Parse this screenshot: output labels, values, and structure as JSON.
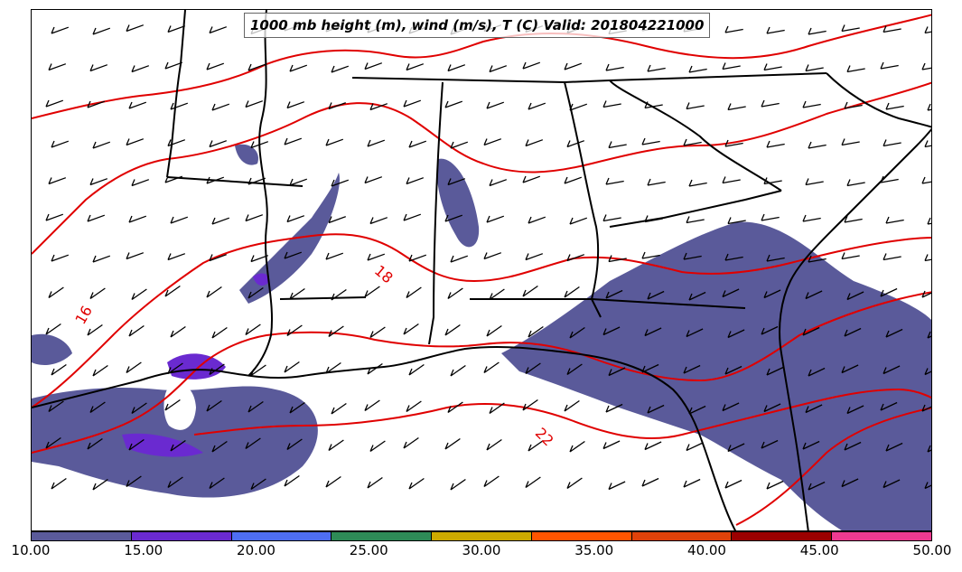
{
  "title": "1000 mb height (m), wind (m/s), T (C) Valid: 201804221000",
  "colors": {
    "coast": "#000000",
    "isotherm": "#e00000",
    "shade_10_15": "#5a5a9a",
    "shade_15_20": "#6a2ad0"
  },
  "colorbar": {
    "segments": [
      "#5a5a9a",
      "#6a2ad0",
      "#4e6ef2",
      "#2e8b57",
      "#ccaa00",
      "#ff5500",
      "#e0420a",
      "#9b0000",
      "#ee3a90"
    ],
    "tick_labels": [
      "10.00",
      "15.00",
      "20.00",
      "25.00",
      "30.00",
      "35.00",
      "40.00",
      "45.00",
      "50.00"
    ]
  },
  "contour_labels": [
    {
      "text": "16"
    },
    {
      "text": "18"
    },
    {
      "text": "22"
    }
  ]
}
